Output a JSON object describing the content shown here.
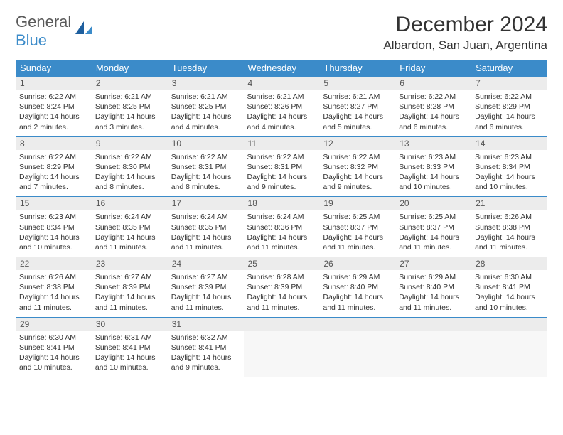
{
  "brand": {
    "part1": "General",
    "part2": "Blue"
  },
  "title": "December 2024",
  "location": "Albardon, San Juan, Argentina",
  "colors": {
    "header_bg": "#3b8bc9",
    "header_text": "#ffffff",
    "daynum_bg": "#ececec",
    "rule": "#3b8bc9",
    "logo_gray": "#5a5a5a",
    "logo_blue": "#3b8bc9"
  },
  "dow": [
    "Sunday",
    "Monday",
    "Tuesday",
    "Wednesday",
    "Thursday",
    "Friday",
    "Saturday"
  ],
  "weeks": [
    [
      {
        "n": "1",
        "sr": "6:22 AM",
        "ss": "8:24 PM",
        "dl": "14 hours and 2 minutes."
      },
      {
        "n": "2",
        "sr": "6:21 AM",
        "ss": "8:25 PM",
        "dl": "14 hours and 3 minutes."
      },
      {
        "n": "3",
        "sr": "6:21 AM",
        "ss": "8:25 PM",
        "dl": "14 hours and 4 minutes."
      },
      {
        "n": "4",
        "sr": "6:21 AM",
        "ss": "8:26 PM",
        "dl": "14 hours and 4 minutes."
      },
      {
        "n": "5",
        "sr": "6:21 AM",
        "ss": "8:27 PM",
        "dl": "14 hours and 5 minutes."
      },
      {
        "n": "6",
        "sr": "6:22 AM",
        "ss": "8:28 PM",
        "dl": "14 hours and 6 minutes."
      },
      {
        "n": "7",
        "sr": "6:22 AM",
        "ss": "8:29 PM",
        "dl": "14 hours and 6 minutes."
      }
    ],
    [
      {
        "n": "8",
        "sr": "6:22 AM",
        "ss": "8:29 PM",
        "dl": "14 hours and 7 minutes."
      },
      {
        "n": "9",
        "sr": "6:22 AM",
        "ss": "8:30 PM",
        "dl": "14 hours and 8 minutes."
      },
      {
        "n": "10",
        "sr": "6:22 AM",
        "ss": "8:31 PM",
        "dl": "14 hours and 8 minutes."
      },
      {
        "n": "11",
        "sr": "6:22 AM",
        "ss": "8:31 PM",
        "dl": "14 hours and 9 minutes."
      },
      {
        "n": "12",
        "sr": "6:22 AM",
        "ss": "8:32 PM",
        "dl": "14 hours and 9 minutes."
      },
      {
        "n": "13",
        "sr": "6:23 AM",
        "ss": "8:33 PM",
        "dl": "14 hours and 10 minutes."
      },
      {
        "n": "14",
        "sr": "6:23 AM",
        "ss": "8:34 PM",
        "dl": "14 hours and 10 minutes."
      }
    ],
    [
      {
        "n": "15",
        "sr": "6:23 AM",
        "ss": "8:34 PM",
        "dl": "14 hours and 10 minutes."
      },
      {
        "n": "16",
        "sr": "6:24 AM",
        "ss": "8:35 PM",
        "dl": "14 hours and 11 minutes."
      },
      {
        "n": "17",
        "sr": "6:24 AM",
        "ss": "8:35 PM",
        "dl": "14 hours and 11 minutes."
      },
      {
        "n": "18",
        "sr": "6:24 AM",
        "ss": "8:36 PM",
        "dl": "14 hours and 11 minutes."
      },
      {
        "n": "19",
        "sr": "6:25 AM",
        "ss": "8:37 PM",
        "dl": "14 hours and 11 minutes."
      },
      {
        "n": "20",
        "sr": "6:25 AM",
        "ss": "8:37 PM",
        "dl": "14 hours and 11 minutes."
      },
      {
        "n": "21",
        "sr": "6:26 AM",
        "ss": "8:38 PM",
        "dl": "14 hours and 11 minutes."
      }
    ],
    [
      {
        "n": "22",
        "sr": "6:26 AM",
        "ss": "8:38 PM",
        "dl": "14 hours and 11 minutes."
      },
      {
        "n": "23",
        "sr": "6:27 AM",
        "ss": "8:39 PM",
        "dl": "14 hours and 11 minutes."
      },
      {
        "n": "24",
        "sr": "6:27 AM",
        "ss": "8:39 PM",
        "dl": "14 hours and 11 minutes."
      },
      {
        "n": "25",
        "sr": "6:28 AM",
        "ss": "8:39 PM",
        "dl": "14 hours and 11 minutes."
      },
      {
        "n": "26",
        "sr": "6:29 AM",
        "ss": "8:40 PM",
        "dl": "14 hours and 11 minutes."
      },
      {
        "n": "27",
        "sr": "6:29 AM",
        "ss": "8:40 PM",
        "dl": "14 hours and 11 minutes."
      },
      {
        "n": "28",
        "sr": "6:30 AM",
        "ss": "8:41 PM",
        "dl": "14 hours and 10 minutes."
      }
    ],
    [
      {
        "n": "29",
        "sr": "6:30 AM",
        "ss": "8:41 PM",
        "dl": "14 hours and 10 minutes."
      },
      {
        "n": "30",
        "sr": "6:31 AM",
        "ss": "8:41 PM",
        "dl": "14 hours and 10 minutes."
      },
      {
        "n": "31",
        "sr": "6:32 AM",
        "ss": "8:41 PM",
        "dl": "14 hours and 9 minutes."
      },
      null,
      null,
      null,
      null
    ]
  ],
  "labels": {
    "sunrise": "Sunrise:",
    "sunset": "Sunset:",
    "daylight": "Daylight:"
  }
}
